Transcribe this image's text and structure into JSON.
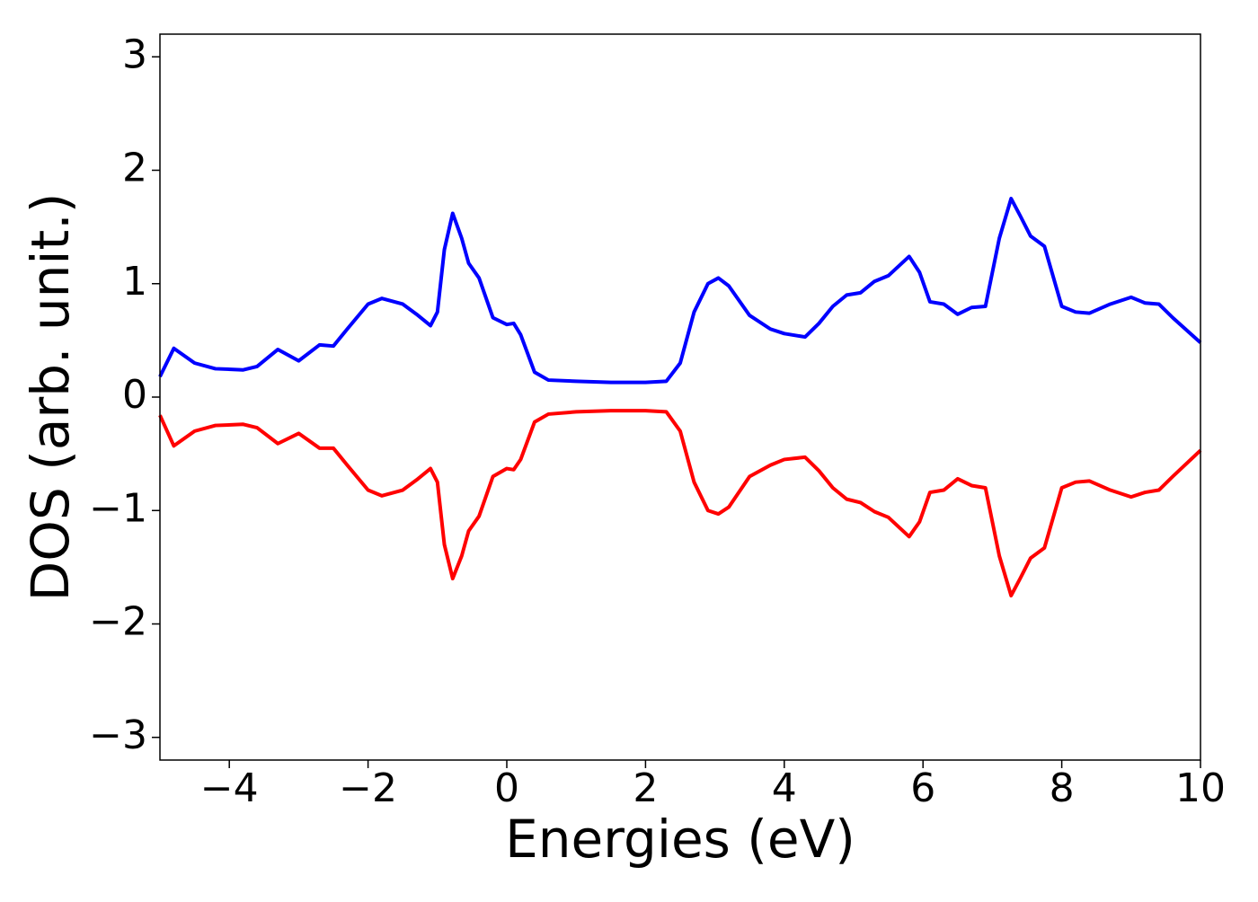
{
  "chart_data": {
    "type": "line",
    "xlabel": "Energies (eV)",
    "ylabel": "DOS (arb. unit.)",
    "x": [
      -5,
      -4.8,
      -4.5,
      -4.2,
      -3.8,
      -3.6,
      -3.3,
      -3.0,
      -2.7,
      -2.5,
      -2.3,
      -2.0,
      -1.8,
      -1.5,
      -1.3,
      -1.1,
      -1.0,
      -0.9,
      -0.78,
      -0.65,
      -0.55,
      -0.4,
      -0.2,
      0,
      0.1,
      0.2,
      0.4,
      0.6,
      1.0,
      1.5,
      2.0,
      2.3,
      2.5,
      2.7,
      2.9,
      3.05,
      3.2,
      3.5,
      3.8,
      4.0,
      4.3,
      4.5,
      4.7,
      4.9,
      5.1,
      5.3,
      5.5,
      5.8,
      5.95,
      6.1,
      6.3,
      6.5,
      6.7,
      6.9,
      7.1,
      7.27,
      7.4,
      7.55,
      7.75,
      8.0,
      8.2,
      8.4,
      8.7,
      9.0,
      9.2,
      9.4,
      9.6,
      10
    ],
    "series": [
      {
        "color": "#0000ff",
        "values": [
          0.18,
          0.43,
          0.3,
          0.25,
          0.24,
          0.27,
          0.42,
          0.32,
          0.46,
          0.45,
          0.6,
          0.82,
          0.87,
          0.82,
          0.73,
          0.63,
          0.75,
          1.3,
          1.62,
          1.4,
          1.18,
          1.05,
          0.7,
          0.64,
          0.65,
          0.55,
          0.22,
          0.15,
          0.14,
          0.13,
          0.13,
          0.14,
          0.3,
          0.75,
          1.0,
          1.05,
          0.98,
          0.72,
          0.6,
          0.56,
          0.53,
          0.65,
          0.8,
          0.9,
          0.92,
          1.02,
          1.07,
          1.24,
          1.1,
          0.84,
          0.82,
          0.73,
          0.79,
          0.8,
          1.4,
          1.75,
          1.6,
          1.42,
          1.33,
          0.8,
          0.75,
          0.74,
          0.82,
          0.88,
          0.83,
          0.82,
          0.7,
          0.48
        ]
      },
      {
        "color": "#ff0000",
        "values": [
          -0.16,
          -0.43,
          -0.3,
          -0.25,
          -0.24,
          -0.27,
          -0.41,
          -0.32,
          -0.45,
          -0.45,
          -0.6,
          -0.82,
          -0.87,
          -0.82,
          -0.73,
          -0.63,
          -0.75,
          -1.3,
          -1.6,
          -1.4,
          -1.18,
          -1.05,
          -0.7,
          -0.63,
          -0.64,
          -0.55,
          -0.22,
          -0.15,
          -0.13,
          -0.12,
          -0.12,
          -0.13,
          -0.3,
          -0.75,
          -1.0,
          -1.03,
          -0.97,
          -0.7,
          -0.6,
          -0.55,
          -0.53,
          -0.65,
          -0.8,
          -0.9,
          -0.93,
          -1.01,
          -1.06,
          -1.23,
          -1.1,
          -0.84,
          -0.82,
          -0.72,
          -0.78,
          -0.8,
          -1.4,
          -1.75,
          -1.6,
          -1.42,
          -1.33,
          -0.8,
          -0.75,
          -0.74,
          -0.82,
          -0.88,
          -0.84,
          -0.82,
          -0.7,
          -0.47
        ]
      }
    ],
    "xlim": [
      -5,
      10
    ],
    "xticks": [
      {
        "value": -4,
        "label": "−4"
      },
      {
        "value": -2,
        "label": "−2"
      },
      0,
      2,
      4,
      6,
      8,
      10
    ],
    "ylim": [
      -3.2,
      3.2
    ],
    "yticks": [
      {
        "value": -3,
        "label": "−3"
      },
      {
        "value": -2,
        "label": "−2"
      },
      {
        "value": -1,
        "label": "−1"
      },
      0,
      1,
      2,
      3
    ],
    "grid": false
  }
}
